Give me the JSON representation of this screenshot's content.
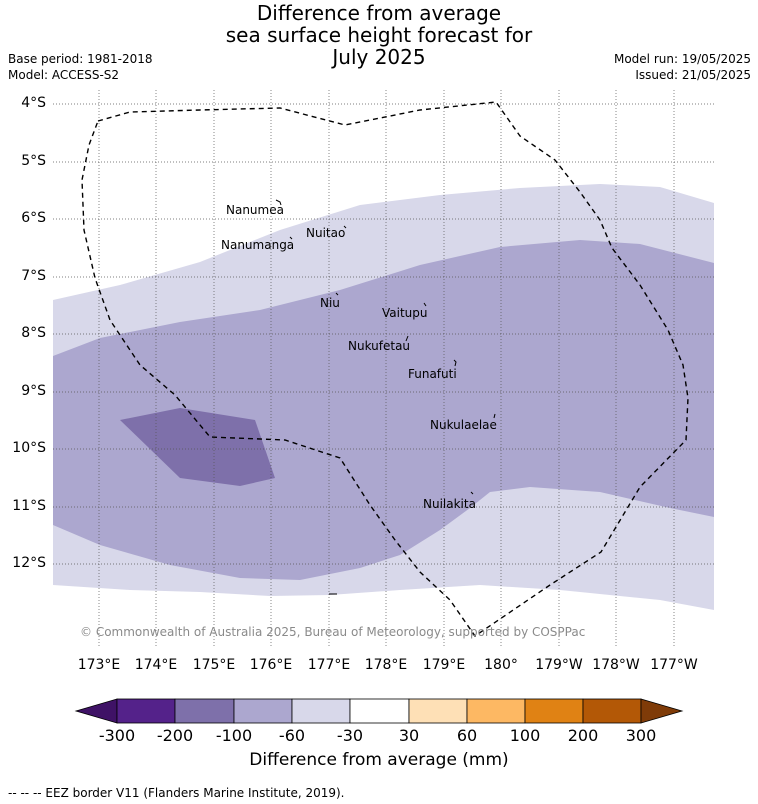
{
  "title": {
    "line1": "Difference from average",
    "line2": "sea surface height forecast for",
    "line3": "July 2025"
  },
  "meta_left": {
    "base_period": "Base period: 1981-2018",
    "model": "Model: ACCESS-S2"
  },
  "meta_right": {
    "model_run": "Model run: 19/05/2025",
    "issued": "Issued: 21/05/2025"
  },
  "map": {
    "lat_labels": [
      "4°S",
      "5°S",
      "6°S",
      "7°S",
      "8°S",
      "9°S",
      "10°S",
      "11°S",
      "12°S"
    ],
    "lon_labels": [
      "173°E",
      "174°E",
      "175°E",
      "176°E",
      "177°E",
      "178°E",
      "179°E",
      "180°",
      "179°W",
      "178°W",
      "177°W"
    ],
    "islands": [
      {
        "name": "Nanumea"
      },
      {
        "name": "Nanumanga"
      },
      {
        "name": "Nuitao"
      },
      {
        "name": "Niu"
      },
      {
        "name": "Vaitupu"
      },
      {
        "name": "Nukufetau"
      },
      {
        "name": "Funafuti"
      },
      {
        "name": "Nukulaelae"
      },
      {
        "name": "Nuilakita"
      }
    ],
    "copyright": "© Commonwealth of Australia 2025, Bureau of Meteorology, supported by COSPPac"
  },
  "colorbar": {
    "ticks": [
      "-300",
      "-200",
      "-100",
      "-60",
      "-30",
      "30",
      "60",
      "100",
      "200",
      "300"
    ],
    "colors": [
      "#3f1266",
      "#54228a",
      "#7e70aa",
      "#aca7cf",
      "#d8d8ea",
      "#ffffff",
      "#fee0b6",
      "#fdb863",
      "#e08214",
      "#b35806",
      "#7f3b08"
    ],
    "label": "Difference from average (mm)"
  },
  "footer": "--  --  -- EEZ border V11 (Flanders Marine Institute, 2019)."
}
